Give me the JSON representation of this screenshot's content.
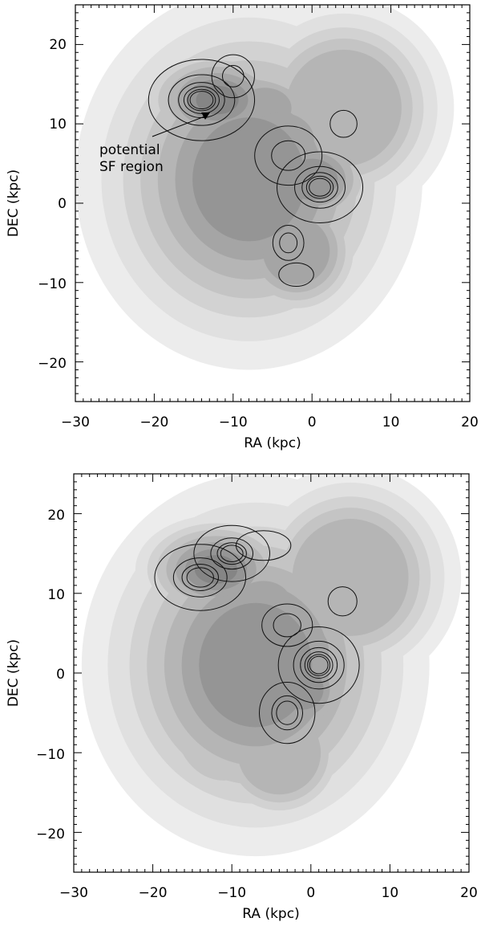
{
  "chart_data": [
    {
      "type": "heatmap",
      "xlabel": "RA (kpc)",
      "ylabel": "DEC (kpc)",
      "xlim": [
        -30,
        20
      ],
      "ylim": [
        -25,
        25
      ],
      "xticks": [
        -30,
        -20,
        -10,
        0,
        10,
        20
      ],
      "yticks": [
        -20,
        -10,
        0,
        10,
        20
      ],
      "tick_labels_x": [
        "−30",
        "−20",
        "−10",
        "0",
        "10",
        "20"
      ],
      "tick_labels_y": [
        "−20",
        "−10",
        "0",
        "10",
        "20"
      ],
      "annotation": {
        "line1": "potential",
        "line2": "SF region",
        "text_at": [
          -27,
          6
        ],
        "arrow_to": [
          -12,
          11
        ]
      },
      "gray_components": [
        {
          "x": -8,
          "y": 3,
          "sx": 11,
          "sy": 12,
          "a": 0.9
        },
        {
          "x": -12,
          "y": 13,
          "sx": 6,
          "sy": 4,
          "a": 1.0
        },
        {
          "x": -6,
          "y": 12,
          "sx": 4,
          "sy": 3,
          "a": 0.8
        },
        {
          "x": -4,
          "y": 8,
          "sx": 5,
          "sy": 4,
          "a": 0.8
        },
        {
          "x": 0,
          "y": 3,
          "sx": 5,
          "sy": 4,
          "a": 0.9
        },
        {
          "x": -2,
          "y": -6,
          "sx": 5,
          "sy": 5,
          "a": 0.7
        },
        {
          "x": 4,
          "y": 12,
          "sx": 7,
          "sy": 7,
          "a": 0.6
        },
        {
          "x": -10,
          "y": -4,
          "sx": 6,
          "sy": 6,
          "a": 0.55
        }
      ],
      "contours": [
        {
          "x": -14,
          "y": 13,
          "sx": 4.2,
          "sy": 3.2,
          "levels": [
            1.0,
            1.6,
            2.3,
            3.0,
            3.8,
            4.6
          ]
        },
        {
          "x": -10,
          "y": 16,
          "sx": 2.2,
          "sy": 2.2,
          "levels": [
            1.3,
            2.6
          ]
        },
        {
          "x": -3,
          "y": 6,
          "sx": 3.2,
          "sy": 2.8,
          "levels": [
            1.2,
            2.4
          ]
        },
        {
          "x": 1,
          "y": 2,
          "sx": 3.4,
          "sy": 2.8,
          "levels": [
            1.0,
            1.7,
            2.4,
            3.2,
            4.0
          ]
        },
        {
          "x": 4,
          "y": 10,
          "sx": 1.6,
          "sy": 1.6,
          "levels": [
            1.5
          ]
        },
        {
          "x": -3,
          "y": -5,
          "sx": 1.6,
          "sy": 1.8,
          "levels": [
            1.3,
            2.3
          ]
        },
        {
          "x": -2,
          "y": -9,
          "sx": 1.8,
          "sy": 1.2,
          "levels": [
            1.3
          ]
        }
      ]
    },
    {
      "type": "heatmap",
      "xlabel": "RA (kpc)",
      "ylabel": "DEC (kpc)",
      "xlim": [
        -30,
        20
      ],
      "ylim": [
        -25,
        25
      ],
      "xticks": [
        -30,
        -20,
        -10,
        0,
        10,
        20
      ],
      "yticks": [
        -20,
        -10,
        0,
        10,
        20
      ],
      "tick_labels_x": [
        "−30",
        "−20",
        "−10",
        "0",
        "10",
        "20"
      ],
      "tick_labels_y": [
        "−20",
        "−10",
        "0",
        "10",
        "20"
      ],
      "gray_components": [
        {
          "x": -7,
          "y": 1,
          "sx": 11,
          "sy": 12,
          "a": 0.9
        },
        {
          "x": -12,
          "y": 13,
          "sx": 6,
          "sy": 4,
          "a": 1.0
        },
        {
          "x": -6,
          "y": 9,
          "sx": 4,
          "sy": 3,
          "a": 0.8
        },
        {
          "x": -2,
          "y": 3,
          "sx": 5,
          "sy": 4,
          "a": 0.8
        },
        {
          "x": -1,
          "y": -2,
          "sx": 4,
          "sy": 4,
          "a": 0.9
        },
        {
          "x": -4,
          "y": -10,
          "sx": 5,
          "sy": 5,
          "a": 0.6
        },
        {
          "x": 5,
          "y": 12,
          "sx": 7,
          "sy": 7,
          "a": 0.6
        },
        {
          "x": -11,
          "y": -6,
          "sx": 5,
          "sy": 6,
          "a": 0.5
        }
      ],
      "contours": [
        {
          "x": -14,
          "y": 12,
          "sx": 3.6,
          "sy": 2.6,
          "levels": [
            1.0,
            1.7,
            2.5,
            3.4
          ]
        },
        {
          "x": -10,
          "y": 15,
          "sx": 3.0,
          "sy": 2.2,
          "levels": [
            1.0,
            1.8,
            2.6,
            3.4
          ]
        },
        {
          "x": -6,
          "y": 16,
          "sx": 2.6,
          "sy": 1.4,
          "levels": [
            1.2
          ]
        },
        {
          "x": -3,
          "y": 6,
          "sx": 2.4,
          "sy": 2.0,
          "levels": [
            1.2,
            2.2
          ]
        },
        {
          "x": 4,
          "y": 9,
          "sx": 1.6,
          "sy": 1.6,
          "levels": [
            1.4
          ]
        },
        {
          "x": 1,
          "y": 1,
          "sx": 3.2,
          "sy": 3.0,
          "levels": [
            1.0,
            1.6,
            2.2,
            2.9,
            3.6,
            4.4
          ]
        },
        {
          "x": -3,
          "y": -5,
          "sx": 2.2,
          "sy": 2.4,
          "levels": [
            1.0,
            1.8,
            2.6
          ]
        }
      ]
    }
  ]
}
